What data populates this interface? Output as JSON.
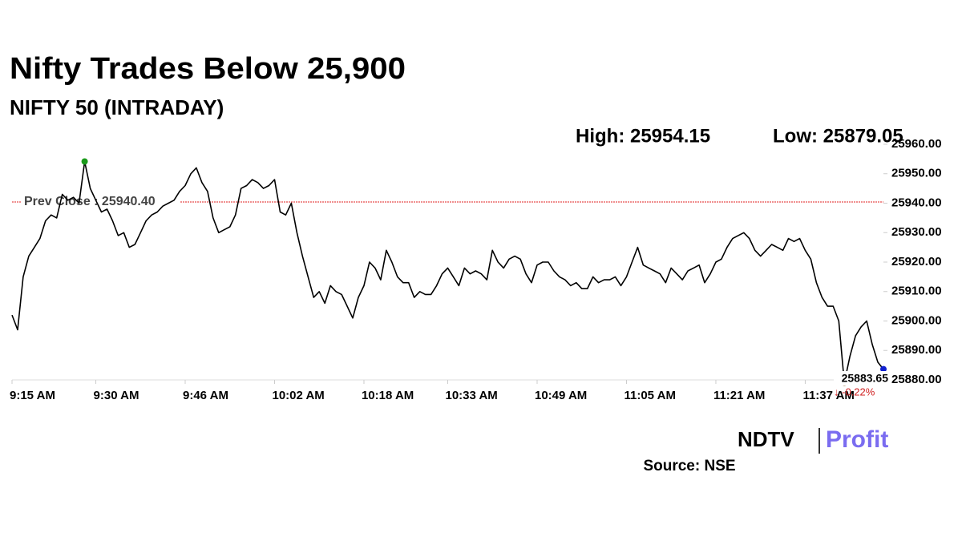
{
  "chart_data": {
    "type": "line",
    "title": "Nifty Trades Below 25,900",
    "subtitle": "NIFTY 50 (INTRADAY)",
    "high_label": "High: 25954.15",
    "low_label": "Low: 25879.05",
    "prev_close": {
      "value": 25940.4,
      "label": "Prev Close : 25940.40"
    },
    "change_label": "↓ -0.22%",
    "source": "Source: NSE",
    "logo_left": "NDTV",
    "logo_right": "Profit",
    "categories": [
      "9:15 AM",
      null,
      null,
      null,
      null,
      null,
      null,
      null,
      null,
      null,
      null,
      null,
      null,
      null,
      null,
      "9:30 AM",
      null,
      null,
      null,
      null,
      null,
      null,
      null,
      null,
      null,
      null,
      null,
      null,
      null,
      null,
      null,
      "9:46 AM",
      null,
      null,
      null,
      null,
      null,
      null,
      null,
      null,
      null,
      null,
      null,
      null,
      null,
      null,
      null,
      "10:02 AM",
      null,
      null,
      null,
      null,
      null,
      null,
      null,
      null,
      null,
      null,
      null,
      null,
      null,
      null,
      null,
      "10:18 AM",
      null,
      null,
      null,
      null,
      null,
      null,
      null,
      null,
      null,
      null,
      null,
      null,
      null,
      null,
      "10:33 AM",
      null,
      null,
      null,
      null,
      null,
      null,
      null,
      null,
      null,
      null,
      null,
      null,
      null,
      null,
      null,
      "10:49 AM",
      null,
      null,
      null,
      null,
      null,
      null,
      null,
      null,
      null,
      null,
      null,
      null,
      null,
      null,
      null,
      "11:05 AM",
      null,
      null,
      null,
      null,
      null,
      null,
      null,
      null,
      null,
      null,
      null,
      null,
      null,
      null,
      null,
      "11:21 AM",
      null,
      null,
      null,
      null,
      null,
      null,
      null,
      null,
      null,
      null,
      null,
      null,
      null,
      null,
      null,
      "11:37 AM",
      null,
      null,
      null,
      null,
      null,
      null,
      null,
      null,
      null,
      null,
      null,
      null,
      null,
      null
    ],
    "series": [
      {
        "name": "NIFTY 50",
        "color": "#000000",
        "values": [
          25902,
          25897,
          25915,
          25922,
          25925,
          25928,
          25934,
          25936,
          25935,
          25943,
          25941,
          25942,
          25940,
          25954.15,
          25945,
          25941,
          25937,
          25938,
          25934,
          25929,
          25930,
          25925,
          25926,
          25930,
          25934,
          25936,
          25937,
          25939,
          25940,
          25941,
          25944,
          25946,
          25950,
          25952,
          25947,
          25944,
          25935,
          25930,
          25931,
          25932,
          25936,
          25945,
          25946,
          25948,
          25947,
          25945,
          25946,
          25948,
          25937,
          25936,
          25940,
          25930,
          25922,
          25915,
          25908,
          25910,
          25906,
          25912,
          25910,
          25909,
          25905,
          25901,
          25908,
          25912,
          25920,
          25918,
          25914,
          25924,
          25920,
          25915,
          25913,
          25913,
          25908,
          25910,
          25909,
          25909,
          25912,
          25916,
          25918,
          25915,
          25912,
          25918,
          25916,
          25917,
          25916,
          25914,
          25924,
          25920,
          25918,
          25921,
          25922,
          25921,
          25916,
          25913,
          25919,
          25920,
          25920,
          25917,
          25915,
          25914,
          25912,
          25913,
          25911,
          25911,
          25915,
          25913,
          25914,
          25914,
          25915,
          25912,
          25915,
          25920,
          25925,
          25919,
          25918,
          25917,
          25916,
          25913,
          25918,
          25916,
          25914,
          25917,
          25918,
          25919,
          25913,
          25916,
          25920,
          25921,
          25925,
          25928,
          25929,
          25930,
          25928,
          25924,
          25922,
          25924,
          25926,
          25925,
          25924,
          25928,
          25927,
          25928,
          25924,
          25921,
          25913,
          25908,
          25905,
          25905,
          25900,
          25879.05,
          25888,
          25895,
          25898,
          25900,
          25892,
          25886,
          25883.65
        ]
      }
    ],
    "ylim": [
      25880,
      25960
    ],
    "yticks": [
      {
        "value": 25880,
        "label": "25880.00"
      },
      {
        "value": 25890,
        "label": "25890.00"
      },
      {
        "value": 25900,
        "label": "25900.00"
      },
      {
        "value": 25910,
        "label": "25910.00"
      },
      {
        "value": 25920,
        "label": "25920.00"
      },
      {
        "value": 25930,
        "label": "25930.00"
      },
      {
        "value": 25940,
        "label": "25940.00"
      },
      {
        "value": 25950,
        "label": "25950.00"
      },
      {
        "value": 25960,
        "label": "25960.00"
      }
    ]
  }
}
